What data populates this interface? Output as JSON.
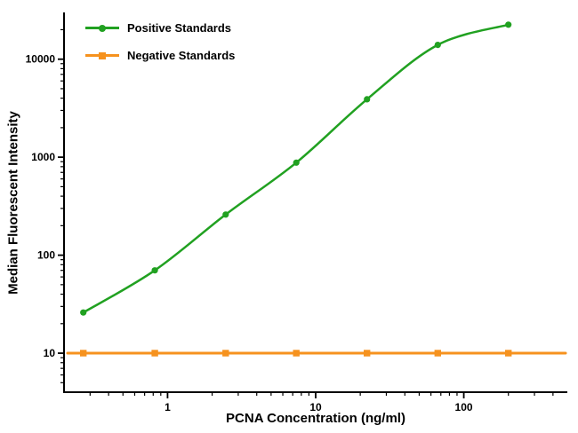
{
  "chart_data": {
    "type": "line",
    "title": "",
    "xlabel": "PCNA Concentration (ng/ml)",
    "ylabel": "Median Fluorescent Intensity",
    "x_scale": "log",
    "y_scale": "log",
    "xlim": [
      0.2,
      500
    ],
    "ylim": [
      4,
      30000
    ],
    "x_ticks": [
      1,
      10,
      100
    ],
    "y_ticks": [
      10,
      100,
      1000,
      10000
    ],
    "grid": false,
    "background": "#ffffff",
    "axis_color": "#000000",
    "legend_position": "top-left",
    "series": [
      {
        "name": "Positive Standards",
        "color": "#21a121",
        "marker": "circle",
        "smooth": true,
        "x": [
          0.27,
          0.82,
          2.47,
          7.4,
          22.2,
          66.7,
          200
        ],
        "y": [
          26,
          70,
          260,
          880,
          3900,
          14000,
          22500
        ]
      },
      {
        "name": "Negative Standards",
        "color": "#f6921e",
        "marker": "square",
        "smooth": false,
        "extend_full_width": true,
        "x": [
          0.27,
          0.82,
          2.47,
          7.4,
          22.2,
          66.7,
          200
        ],
        "y": [
          10,
          10,
          10,
          10,
          10,
          10,
          10
        ]
      }
    ]
  }
}
